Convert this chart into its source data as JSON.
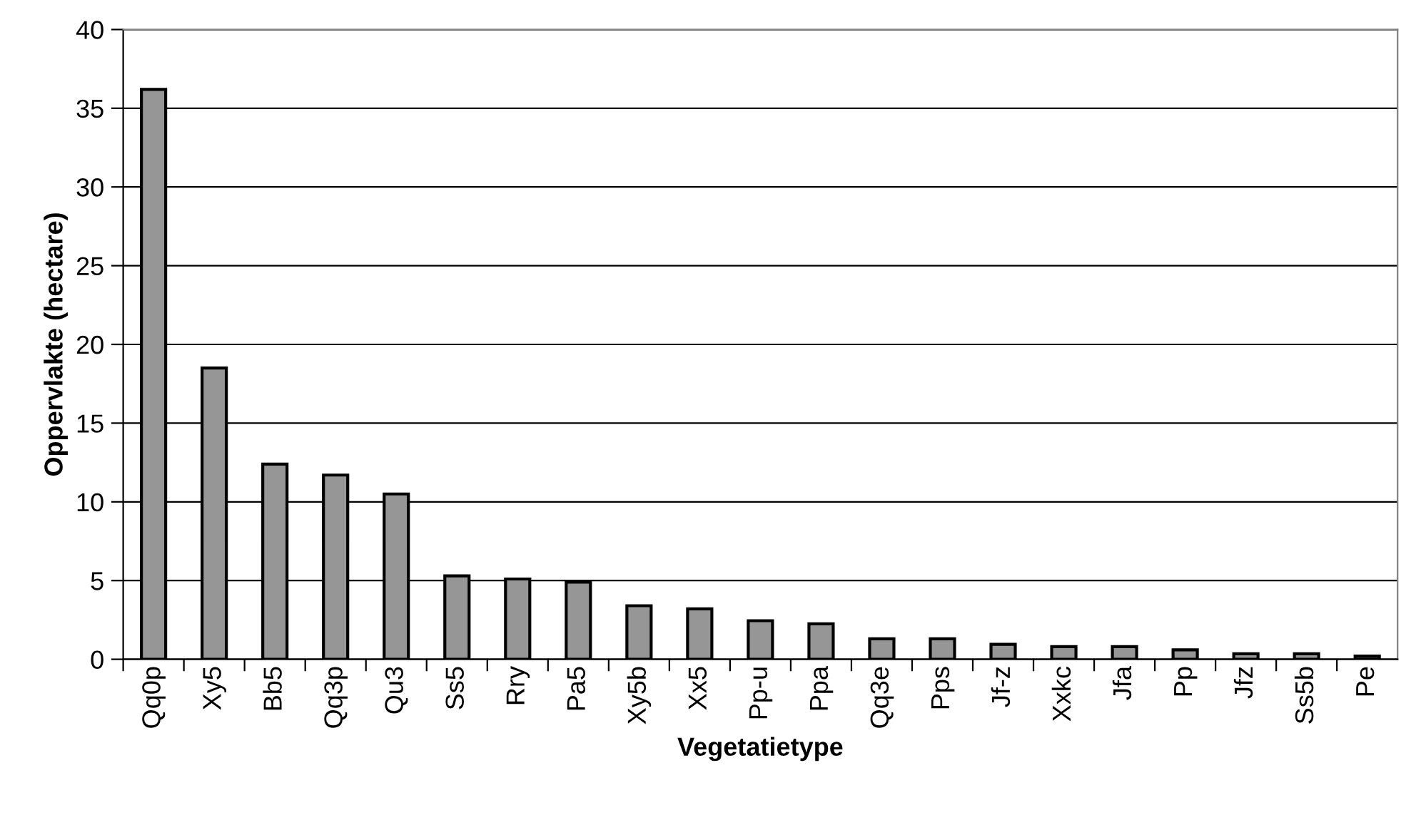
{
  "chart_data": {
    "type": "bar",
    "xlabel": "Vegetatietype",
    "ylabel": "Oppervlakte (hectare)",
    "categories": [
      "Qq0p",
      "Xy5",
      "Bb5",
      "Qq3p",
      "Qu3",
      "Ss5",
      "Rry",
      "Pa5",
      "Xy5b",
      "Xx5",
      "Pp-u",
      "Ppa",
      "Qq3e",
      "Pps",
      "Jf-z",
      "Xxkc",
      "Jfa",
      "Pp",
      "Jfz",
      "Ss5b",
      "Pe"
    ],
    "values": [
      36.2,
      18.5,
      12.4,
      11.7,
      10.5,
      5.3,
      5.1,
      4.9,
      3.4,
      3.2,
      2.45,
      2.25,
      1.3,
      1.3,
      0.95,
      0.8,
      0.8,
      0.6,
      0.35,
      0.35,
      0.2
    ],
    "color": "#969696",
    "ylim": [
      0,
      40
    ],
    "yticks": [
      0,
      5,
      10,
      15,
      20,
      25,
      30,
      35,
      40
    ],
    "grid": "y"
  }
}
